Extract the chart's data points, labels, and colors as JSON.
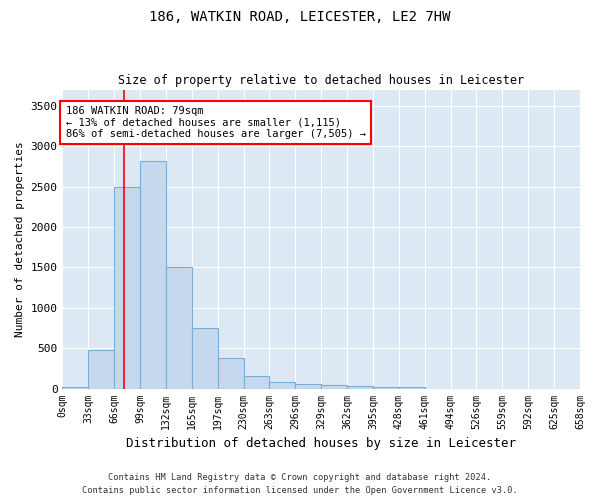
{
  "title": "186, WATKIN ROAD, LEICESTER, LE2 7HW",
  "subtitle": "Size of property relative to detached houses in Leicester",
  "xlabel": "Distribution of detached houses by size in Leicester",
  "ylabel": "Number of detached properties",
  "bar_color": "#c5d8ed",
  "bar_edge_color": "#7aaed6",
  "background_color": "#dce9f5",
  "grid_color": "#ffffff",
  "bin_labels": [
    "0sqm",
    "33sqm",
    "66sqm",
    "99sqm",
    "132sqm",
    "165sqm",
    "197sqm",
    "230sqm",
    "263sqm",
    "296sqm",
    "329sqm",
    "362sqm",
    "395sqm",
    "428sqm",
    "461sqm",
    "494sqm",
    "526sqm",
    "559sqm",
    "592sqm",
    "625sqm",
    "658sqm"
  ],
  "bar_heights": [
    20,
    480,
    2500,
    2820,
    1500,
    750,
    380,
    150,
    75,
    55,
    40,
    30,
    25,
    20,
    0,
    0,
    0,
    0,
    0,
    0
  ],
  "annotation_text": "186 WATKIN ROAD: 79sqm\n← 13% of detached houses are smaller (1,115)\n86% of semi-detached houses are larger (7,505) →",
  "ylim": [
    0,
    3700
  ],
  "yticks": [
    0,
    500,
    1000,
    1500,
    2000,
    2500,
    3000,
    3500
  ],
  "footer_line1": "Contains HM Land Registry data © Crown copyright and database right 2024.",
  "footer_line2": "Contains public sector information licensed under the Open Government Licence v3.0."
}
